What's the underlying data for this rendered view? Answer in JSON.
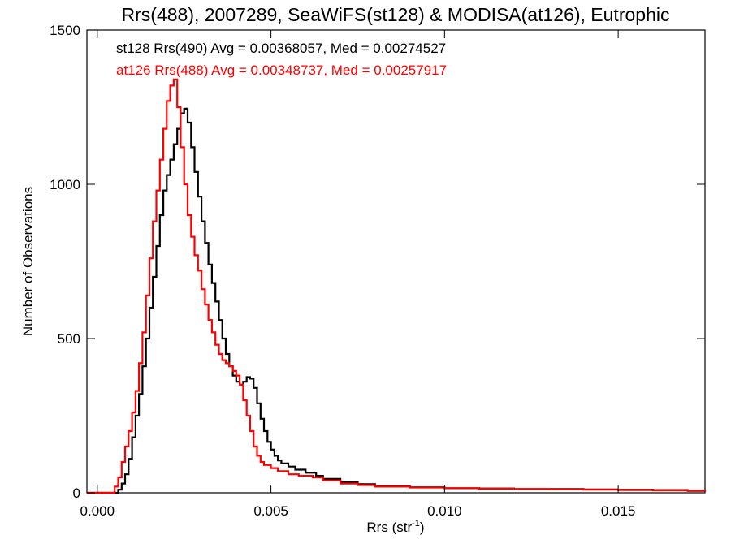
{
  "chart_data": {
    "type": "line",
    "title": "Rrs(488), 2007289, SeaWiFS(st128) & MODISA(at126), Eutrophic",
    "xlabel": "Rrs (str",
    "xlabel_sup": "-1",
    "xlabel_suffix": ")",
    "ylabel": "Number of Observations",
    "xlim": [
      -0.0003,
      0.0175
    ],
    "ylim": [
      0,
      1500
    ],
    "xticks": [
      0.0,
      0.005,
      0.01,
      0.015
    ],
    "xtick_labels": [
      "0.000",
      "0.005",
      "0.010",
      "0.015"
    ],
    "yticks": [
      0,
      500,
      1000,
      1500
    ],
    "ytick_labels": [
      "0",
      "500",
      "1000",
      "1500"
    ],
    "grid": false,
    "legend_position": "top-left",
    "series": [
      {
        "name": "st128 Rrs(490) Avg = 0.00368057, Med = 0.00274527",
        "color": "#000000",
        "points": [
          [
            -0.0003,
            0
          ],
          [
            0.0005,
            0
          ],
          [
            0.0006,
            10
          ],
          [
            0.0007,
            30
          ],
          [
            0.0008,
            60
          ],
          [
            0.0009,
            110
          ],
          [
            0.001,
            180
          ],
          [
            0.0011,
            250
          ],
          [
            0.0012,
            320
          ],
          [
            0.0013,
            410
          ],
          [
            0.0014,
            500
          ],
          [
            0.0015,
            600
          ],
          [
            0.0016,
            700
          ],
          [
            0.0017,
            800
          ],
          [
            0.0018,
            900
          ],
          [
            0.0019,
            980
          ],
          [
            0.002,
            1030
          ],
          [
            0.0021,
            1080
          ],
          [
            0.0022,
            1130
          ],
          [
            0.0023,
            1180
          ],
          [
            0.0024,
            1230
          ],
          [
            0.0025,
            1245
          ],
          [
            0.0026,
            1200
          ],
          [
            0.0027,
            1120
          ],
          [
            0.0028,
            1040
          ],
          [
            0.0029,
            960
          ],
          [
            0.003,
            880
          ],
          [
            0.0031,
            810
          ],
          [
            0.0032,
            740
          ],
          [
            0.0033,
            680
          ],
          [
            0.0034,
            620
          ],
          [
            0.0035,
            560
          ],
          [
            0.0036,
            500
          ],
          [
            0.0037,
            450
          ],
          [
            0.0038,
            410
          ],
          [
            0.0039,
            380
          ],
          [
            0.004,
            360
          ],
          [
            0.0041,
            350
          ],
          [
            0.0042,
            360
          ],
          [
            0.0043,
            375
          ],
          [
            0.0044,
            370
          ],
          [
            0.0045,
            340
          ],
          [
            0.0046,
            290
          ],
          [
            0.0047,
            240
          ],
          [
            0.0048,
            200
          ],
          [
            0.0049,
            165
          ],
          [
            0.005,
            140
          ],
          [
            0.0051,
            120
          ],
          [
            0.0052,
            105
          ],
          [
            0.0053,
            95
          ],
          [
            0.0055,
            85
          ],
          [
            0.0057,
            75
          ],
          [
            0.006,
            65
          ],
          [
            0.0063,
            55
          ],
          [
            0.0065,
            45
          ],
          [
            0.007,
            35
          ],
          [
            0.0075,
            28
          ],
          [
            0.008,
            22
          ],
          [
            0.009,
            18
          ],
          [
            0.01,
            15
          ],
          [
            0.011,
            14
          ],
          [
            0.012,
            12
          ],
          [
            0.013,
            12
          ],
          [
            0.014,
            11
          ],
          [
            0.015,
            10
          ],
          [
            0.016,
            9
          ],
          [
            0.017,
            6
          ],
          [
            0.0175,
            5
          ]
        ]
      },
      {
        "name": "at126 Rrs(488) Avg = 0.00348737, Med = 0.00257917",
        "color": "#ff0000",
        "points": [
          [
            -0.0003,
            0
          ],
          [
            0.0004,
            0
          ],
          [
            0.0005,
            20
          ],
          [
            0.0006,
            50
          ],
          [
            0.0007,
            100
          ],
          [
            0.0008,
            150
          ],
          [
            0.0009,
            200
          ],
          [
            0.001,
            260
          ],
          [
            0.0011,
            330
          ],
          [
            0.0012,
            420
          ],
          [
            0.0013,
            520
          ],
          [
            0.0014,
            640
          ],
          [
            0.0015,
            760
          ],
          [
            0.0016,
            880
          ],
          [
            0.0017,
            980
          ],
          [
            0.0018,
            1080
          ],
          [
            0.0019,
            1180
          ],
          [
            0.002,
            1270
          ],
          [
            0.0021,
            1320
          ],
          [
            0.0022,
            1340
          ],
          [
            0.0023,
            1250
          ],
          [
            0.0024,
            1120
          ],
          [
            0.0025,
            1000
          ],
          [
            0.0026,
            900
          ],
          [
            0.0027,
            830
          ],
          [
            0.0028,
            770
          ],
          [
            0.0029,
            720
          ],
          [
            0.003,
            660
          ],
          [
            0.0031,
            610
          ],
          [
            0.0032,
            560
          ],
          [
            0.0033,
            520
          ],
          [
            0.0034,
            480
          ],
          [
            0.0035,
            450
          ],
          [
            0.0036,
            430
          ],
          [
            0.0037,
            420
          ],
          [
            0.0038,
            410
          ],
          [
            0.0039,
            395
          ],
          [
            0.004,
            380
          ],
          [
            0.0041,
            350
          ],
          [
            0.0042,
            300
          ],
          [
            0.0043,
            250
          ],
          [
            0.0044,
            200
          ],
          [
            0.0045,
            150
          ],
          [
            0.0046,
            120
          ],
          [
            0.0047,
            100
          ],
          [
            0.0048,
            90
          ],
          [
            0.005,
            80
          ],
          [
            0.0052,
            70
          ],
          [
            0.0055,
            60
          ],
          [
            0.0058,
            55
          ],
          [
            0.006,
            55
          ],
          [
            0.0062,
            50
          ],
          [
            0.0065,
            40
          ],
          [
            0.007,
            30
          ],
          [
            0.0075,
            25
          ],
          [
            0.008,
            20
          ],
          [
            0.009,
            17
          ],
          [
            0.01,
            15
          ],
          [
            0.011,
            13
          ],
          [
            0.012,
            12
          ],
          [
            0.013,
            11
          ],
          [
            0.014,
            10
          ],
          [
            0.015,
            9
          ],
          [
            0.016,
            8
          ],
          [
            0.017,
            7
          ],
          [
            0.0175,
            6
          ]
        ]
      }
    ]
  }
}
